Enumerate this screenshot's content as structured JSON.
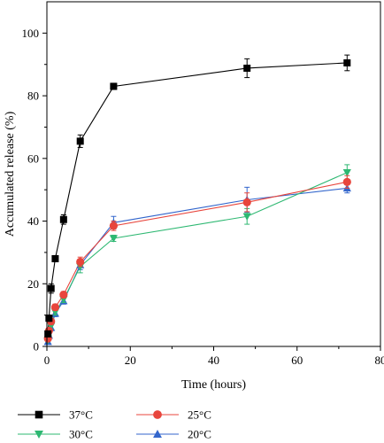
{
  "chart_data": {
    "type": "line",
    "xlabel": "Time (hours)",
    "ylabel": "Accumulated release (%)",
    "xlim": [
      0,
      80
    ],
    "ylim": [
      0,
      110
    ],
    "xticks": [
      0,
      20,
      40,
      60,
      80
    ],
    "yticks": [
      0,
      20,
      40,
      60,
      80,
      100
    ],
    "grid": false,
    "legend_position": "bottom",
    "series": [
      {
        "name": "37°C",
        "color": "#000000",
        "marker": "square",
        "x": [
          0.25,
          0.5,
          1,
          2,
          4,
          8,
          16,
          48,
          72
        ],
        "y": [
          4,
          9,
          18.5,
          28,
          40.5,
          65.5,
          83,
          88.8,
          90.5
        ],
        "err": [
          0.5,
          1,
          1.5,
          1,
          1.5,
          2,
          1,
          3,
          2.5
        ]
      },
      {
        "name": "25°C",
        "color": "#e8453c",
        "marker": "circle",
        "x": [
          0.25,
          0.5,
          1,
          2,
          4,
          8,
          16,
          48,
          72
        ],
        "y": [
          2.5,
          5,
          8,
          12.5,
          16.5,
          27,
          38.5,
          46,
          52.5
        ],
        "err": [
          0.5,
          0.5,
          1,
          1,
          1,
          1.5,
          1.5,
          3,
          2
        ]
      },
      {
        "name": "30°C",
        "color": "#2eb872",
        "marker": "triangle-down",
        "x": [
          0.25,
          0.5,
          1,
          2,
          4,
          8,
          16,
          48,
          72
        ],
        "y": [
          2,
          4,
          6.5,
          11,
          15,
          25.5,
          34.5,
          41.5,
          55.5
        ],
        "err": [
          0.5,
          0.5,
          1,
          1,
          1,
          2,
          1,
          2.5,
          2.5
        ]
      },
      {
        "name": "20°C",
        "color": "#3366cc",
        "marker": "triangle-up",
        "x": [
          0.25,
          0.5,
          1,
          2,
          4,
          8,
          16,
          48,
          72
        ],
        "y": [
          1.5,
          3.5,
          6,
          10.5,
          14.5,
          26,
          39.5,
          46.8,
          50.5
        ],
        "err": [
          0.5,
          0.5,
          1,
          1,
          1,
          1.5,
          2,
          4,
          1.5
        ]
      }
    ]
  }
}
